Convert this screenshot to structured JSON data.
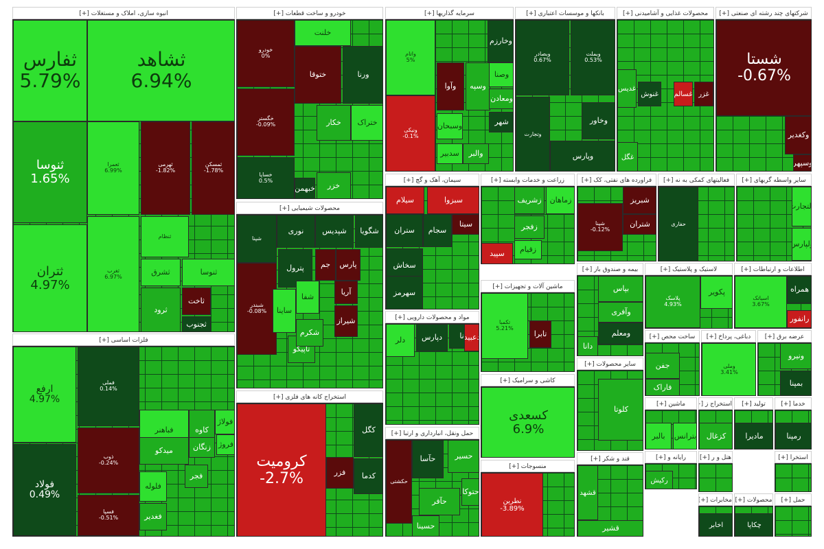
{
  "colors": {
    "bright_green": "#2fe02f",
    "green": "#1fae1f",
    "dark_green": "#0f4a1a",
    "dark_red": "#5a0b0b",
    "red": "#c81c1c"
  },
  "chart_data": {
    "type": "treemap",
    "sectors": [
      {
        "label": "انبوه سازی، املاک و مستغلات [+]",
        "tiles": [
          {
            "name": "ثفارس",
            "value": 5.79,
            "text": "5.79%",
            "c": "bright_green"
          },
          {
            "name": "ثشاهد",
            "value": 6.94,
            "text": "6.94%",
            "c": "bright_green"
          },
          {
            "name": "ثنوسا",
            "value": 1.65,
            "text": "1.65%",
            "c": "green"
          },
          {
            "name": "ثتران",
            "value": 4.97,
            "text": "4.97%",
            "c": "bright_green"
          },
          {
            "name": "ثعمرا",
            "value": 6.99,
            "text": "6.99%",
            "c": "bright_green"
          },
          {
            "name": "ثهرمی",
            "value": -1.82,
            "text": "-1.82%",
            "c": "dark_red"
          },
          {
            "name": "ثمسکن",
            "value": -1.78,
            "text": "-1.78%",
            "c": "dark_red"
          },
          {
            "name": "ثغرب",
            "value": 6.97,
            "text": "6.97%",
            "c": "bright_green"
          },
          {
            "name": "ثنظام",
            "c": "bright_green"
          },
          {
            "name": "ثشرق",
            "c": "bright_green"
          },
          {
            "name": "ثنوسا",
            "c": "bright_green"
          },
          {
            "name": "ثاخت",
            "c": "dark_red"
          },
          {
            "name": "ثجنوب",
            "c": "dark_green"
          },
          {
            "name": "ثرود",
            "c": "green"
          }
        ]
      },
      {
        "label": "خودرو و ساخت قطعات [+]",
        "tiles": [
          {
            "name": "خودرو",
            "value": 0,
            "text": "0%",
            "c": "dark_red"
          },
          {
            "name": "خگستر",
            "value": -0.09,
            "text": "-0.09%",
            "c": "dark_red"
          },
          {
            "name": "خساپا",
            "value": 0.5,
            "text": "0.5%",
            "c": "dark_green"
          },
          {
            "name": "ختوقا",
            "c": "dark_red"
          },
          {
            "name": "ورنا",
            "c": "dark_green"
          },
          {
            "name": "خلنت",
            "c": "bright_green"
          },
          {
            "name": "خکار",
            "c": "green"
          },
          {
            "name": "ختراک",
            "c": "bright_green"
          },
          {
            "name": "خزر",
            "c": "green"
          },
          {
            "name": "خبهمن",
            "c": "dark_green"
          }
        ]
      },
      {
        "label": "سرمایه گذاریها [+]",
        "tiles": [
          {
            "name": "واتام",
            "value": 5,
            "text": "5%",
            "c": "bright_green"
          },
          {
            "name": "ونیکی",
            "value": -0.1,
            "text": "-0.1%",
            "c": "red"
          },
          {
            "name": "وخارزم",
            "c": "dark_green"
          },
          {
            "name": "وآوا",
            "c": "dark_red"
          },
          {
            "name": "وسپه",
            "c": "green"
          },
          {
            "name": "وصنا",
            "c": "bright_green"
          },
          {
            "name": "وسبحان",
            "c": "bright_green"
          },
          {
            "name": "سدبیر",
            "c": "bright_green"
          },
          {
            "name": "ومعادن",
            "c": "green"
          },
          {
            "name": "شهر",
            "c": "dark_green"
          },
          {
            "name": "والبر",
            "c": "green"
          }
        ]
      },
      {
        "label": "بانکها و موسسات اعتباری [+]",
        "tiles": [
          {
            "name": "وبملت",
            "value": 0.53,
            "text": "0.53%",
            "c": "dark_green"
          },
          {
            "name": "وبصادر",
            "value": 0.67,
            "text": "0.67%",
            "c": "dark_green"
          },
          {
            "name": "وتجارت",
            "c": "dark_green"
          },
          {
            "name": "وخاور",
            "c": "dark_green"
          },
          {
            "name": "وپارس",
            "c": "dark_green"
          }
        ]
      },
      {
        "label": "محصولات غذایی و آشامیدنی [+]",
        "tiles": [
          {
            "name": "غدیس",
            "c": "green"
          },
          {
            "name": "غنوش",
            "c": "dark_green"
          },
          {
            "name": "غزر",
            "c": "dark_red"
          },
          {
            "name": "غگل",
            "c": "green"
          },
          {
            "name": "غسالم",
            "c": "red"
          }
        ]
      },
      {
        "label": "شرکتهای چند رشته ای صنعتی [+]",
        "tiles": [
          {
            "name": "شستا",
            "value": -0.67,
            "text": "-0.67%",
            "c": "dark_red"
          },
          {
            "name": "وکغدیر",
            "c": "dark_red"
          },
          {
            "name": "وسپهر",
            "c": "dark_red"
          }
        ]
      },
      {
        "label": "فلزات اساسی [+]",
        "tiles": [
          {
            "name": "ارفع",
            "value": 4.97,
            "text": "4.97%",
            "c": "bright_green"
          },
          {
            "name": "فولاد",
            "value": 0.49,
            "text": "0.49%",
            "c": "dark_green"
          },
          {
            "name": "فملی",
            "value": 0.14,
            "text": "0.14%",
            "c": "dark_green"
          },
          {
            "name": "ذوب",
            "value": -0.24,
            "text": "-0.24%",
            "c": "dark_red"
          },
          {
            "name": "فسپا",
            "value": -0.51,
            "text": "-0.51%",
            "c": "dark_red"
          },
          {
            "name": "فباهنر",
            "c": "bright_green"
          },
          {
            "name": "کاوه",
            "c": "green"
          },
          {
            "name": "فروژ",
            "c": "bright_green"
          },
          {
            "name": "زنگان",
            "c": "green"
          },
          {
            "name": "فولاژ",
            "c": "bright_green"
          },
          {
            "name": "میدکو",
            "c": "green"
          },
          {
            "name": "فجر",
            "c": "green"
          },
          {
            "name": "فلوله",
            "c": "bright_green"
          },
          {
            "name": "فغدیر",
            "c": "green"
          }
        ]
      },
      {
        "label": "محصولات شیمیایی [+]",
        "tiles": [
          {
            "name": "شپنا",
            "c": "dark_green"
          },
          {
            "name": "نوری",
            "c": "dark_green"
          },
          {
            "name": "شبندر",
            "value": -0.08,
            "text": "-0.08%",
            "c": "dark_red"
          },
          {
            "name": "شگویا",
            "c": "dark_green"
          },
          {
            "name": "شپدیس",
            "c": "dark_green"
          },
          {
            "name": "پارس",
            "c": "dark_red"
          },
          {
            "name": "جم",
            "c": "dark_red"
          },
          {
            "name": "پترول",
            "c": "dark_green"
          },
          {
            "name": "شیراز",
            "c": "dark_red"
          },
          {
            "name": "ساینا",
            "c": "bright_green"
          },
          {
            "name": "آریا",
            "c": "dark_red"
          },
          {
            "name": "شفا",
            "c": "bright_green"
          },
          {
            "name": "تاپیکو",
            "c": "green"
          },
          {
            "name": "شکرم",
            "c": "green"
          }
        ]
      },
      {
        "label": "استخراج کانه های فلزی [+]",
        "tiles": [
          {
            "name": "کرومیت",
            "value": -2.7,
            "text": "-2.7%",
            "c": "red"
          },
          {
            "name": "کگل",
            "c": "dark_green"
          },
          {
            "name": "فزر",
            "c": "dark_red"
          },
          {
            "name": "کدما",
            "c": "dark_green"
          }
        ]
      },
      {
        "label": "سیمان، آهک و گچ [+]",
        "tiles": [
          {
            "name": "سبزوا",
            "c": "red"
          },
          {
            "name": "سیلام",
            "c": "red"
          },
          {
            "name": "ستران",
            "c": "dark_green"
          },
          {
            "name": "سجام",
            "c": "dark_green"
          },
          {
            "name": "سیتا",
            "c": "dark_red"
          },
          {
            "name": "سخاش",
            "c": "dark_green"
          },
          {
            "name": "سهرمز",
            "c": "dark_green"
          }
        ]
      },
      {
        "label": "زراعت و خدمات وابسته [+]",
        "tiles": [
          {
            "name": "زشریف",
            "c": "green"
          },
          {
            "name": "زماهان",
            "c": "bright_green"
          },
          {
            "name": "زفجر",
            "c": "green"
          },
          {
            "name": "زقیام",
            "c": "bright_green"
          },
          {
            "name": "سپید",
            "c": "red"
          }
        ]
      },
      {
        "label": "فراورده های نفتی، کک [+]",
        "tiles": [
          {
            "name": "شپنا",
            "value": -0.12,
            "text": "-0.12%",
            "c": "dark_red"
          },
          {
            "name": "شبریز",
            "c": "dark_red"
          },
          {
            "name": "شتران",
            "c": "dark_red"
          }
        ]
      },
      {
        "label": "فعالیتهای کمکی به نه [+]",
        "tiles": [
          {
            "name": "حفاری",
            "c": "dark_green"
          }
        ]
      },
      {
        "label": "سایر واسطه گریهای [+]",
        "tiles": [
          {
            "name": "ولتجارت",
            "c": "bright_green"
          },
          {
            "name": "ولپارس",
            "c": "bright_green"
          }
        ]
      },
      {
        "label": "مواد و محصولات دارویی [+]",
        "tiles": [
          {
            "name": "دلر",
            "c": "bright_green"
          },
          {
            "name": "دپارس",
            "c": "dark_green"
          },
          {
            "name": "دانا",
            "c": "dark_green"
          },
          {
            "name": "دعبید",
            "c": "red"
          }
        ]
      },
      {
        "label": "ماشین آلات و تجهیزات [+]",
        "tiles": [
          {
            "name": "تکمبا",
            "value": 5.21,
            "text": "5.21%",
            "c": "bright_green"
          },
          {
            "name": "تابرا",
            "c": "dark_red"
          }
        ]
      },
      {
        "label": "بیمه و صندوق باز [+]",
        "tiles": [
          {
            "name": "بپاس",
            "c": "green"
          },
          {
            "name": "وآفری",
            "c": "green"
          },
          {
            "name": "ومعلم",
            "c": "dark_green"
          },
          {
            "name": "دانا",
            "c": "green"
          }
        ]
      },
      {
        "label": "لاستیک و پلاستیک [+]",
        "tiles": [
          {
            "name": "پلاسک",
            "value": 4.93,
            "text": "4.93%",
            "c": "green"
          },
          {
            "name": "پکویر",
            "c": "bright_green"
          }
        ]
      },
      {
        "label": "اطلاعات و ارتباطات [+]",
        "tiles": [
          {
            "name": "اسیاتک",
            "value": 3.67,
            "text": "3.67%",
            "c": "bright_green"
          },
          {
            "name": "همراه",
            "c": "dark_green"
          },
          {
            "name": "رانفور",
            "c": "red"
          }
        ]
      },
      {
        "label": "حمل ونقل، انبارداری و ارتبا [+]",
        "tiles": [
          {
            "name": "حکشتی",
            "c": "dark_red"
          },
          {
            "name": "حآسا",
            "c": "dark_green"
          },
          {
            "name": "حسیر",
            "c": "green"
          },
          {
            "name": "حتوکا",
            "c": "green"
          },
          {
            "name": "حسینا",
            "c": "green"
          },
          {
            "name": "حآفر",
            "c": "green"
          }
        ]
      },
      {
        "label": "کاشی و سرامیک [+]",
        "tiles": [
          {
            "name": "کسعدی",
            "value": 6.9,
            "text": "6.9%",
            "c": "bright_green"
          }
        ]
      },
      {
        "label": "منسوجات [+]",
        "tiles": [
          {
            "name": "نطرین",
            "value": -3.89,
            "text": "-3.89%",
            "c": "red"
          }
        ]
      },
      {
        "label": "ساخت محص [+]",
        "tiles": [
          {
            "name": "جفن",
            "c": "green"
          },
          {
            "name": "فاراک",
            "c": "green"
          }
        ]
      },
      {
        "label": "دباغی، پرداخ [+]",
        "tiles": [
          {
            "name": "وملی",
            "value": 3.41,
            "text": "3.41%",
            "c": "bright_green"
          }
        ]
      },
      {
        "label": "عرضه برق [+]",
        "tiles": [
          {
            "name": "ونیرو",
            "c": "green"
          },
          {
            "name": "بمپنا",
            "c": "dark_green"
          }
        ]
      },
      {
        "label": "سایر محصولات [+]",
        "tiles": [
          {
            "name": "کلوتا",
            "c": "green"
          }
        ]
      },
      {
        "label": "ماشین [+]",
        "tiles": [
          {
            "name": "بالبر",
            "c": "bright_green"
          },
          {
            "name": "بترانس",
            "c": "bright_green"
          }
        ]
      },
      {
        "label": "استخراج ز [+]",
        "tiles": [
          {
            "name": "کزغال",
            "c": "green"
          }
        ]
      },
      {
        "label": "تولید [+]",
        "tiles": [
          {
            "name": "مادیرا",
            "c": "dark_green"
          }
        ]
      },
      {
        "label": "خدما [+]",
        "tiles": [
          {
            "name": "رمپنا",
            "c": "dark_green"
          }
        ]
      },
      {
        "label": "قند و شکر [+]",
        "tiles": [
          {
            "name": "قشهد",
            "c": "green"
          },
          {
            "name": "قشیر",
            "c": "green"
          }
        ]
      },
      {
        "label": "هتل و ر [+]",
        "tiles": []
      },
      {
        "label": "استخرا [+]",
        "tiles": []
      },
      {
        "label": "رایانه و [+]",
        "tiles": [
          {
            "name": "رکیش",
            "c": "green"
          }
        ]
      },
      {
        "label": "مخابرات [+]",
        "tiles": [
          {
            "name": "اخابر",
            "c": "dark_green"
          }
        ]
      },
      {
        "label": "محصولات [+]",
        "tiles": [
          {
            "name": "چکاپا",
            "c": "dark_green"
          }
        ]
      },
      {
        "label": "حمل [+]",
        "tiles": []
      }
    ]
  }
}
